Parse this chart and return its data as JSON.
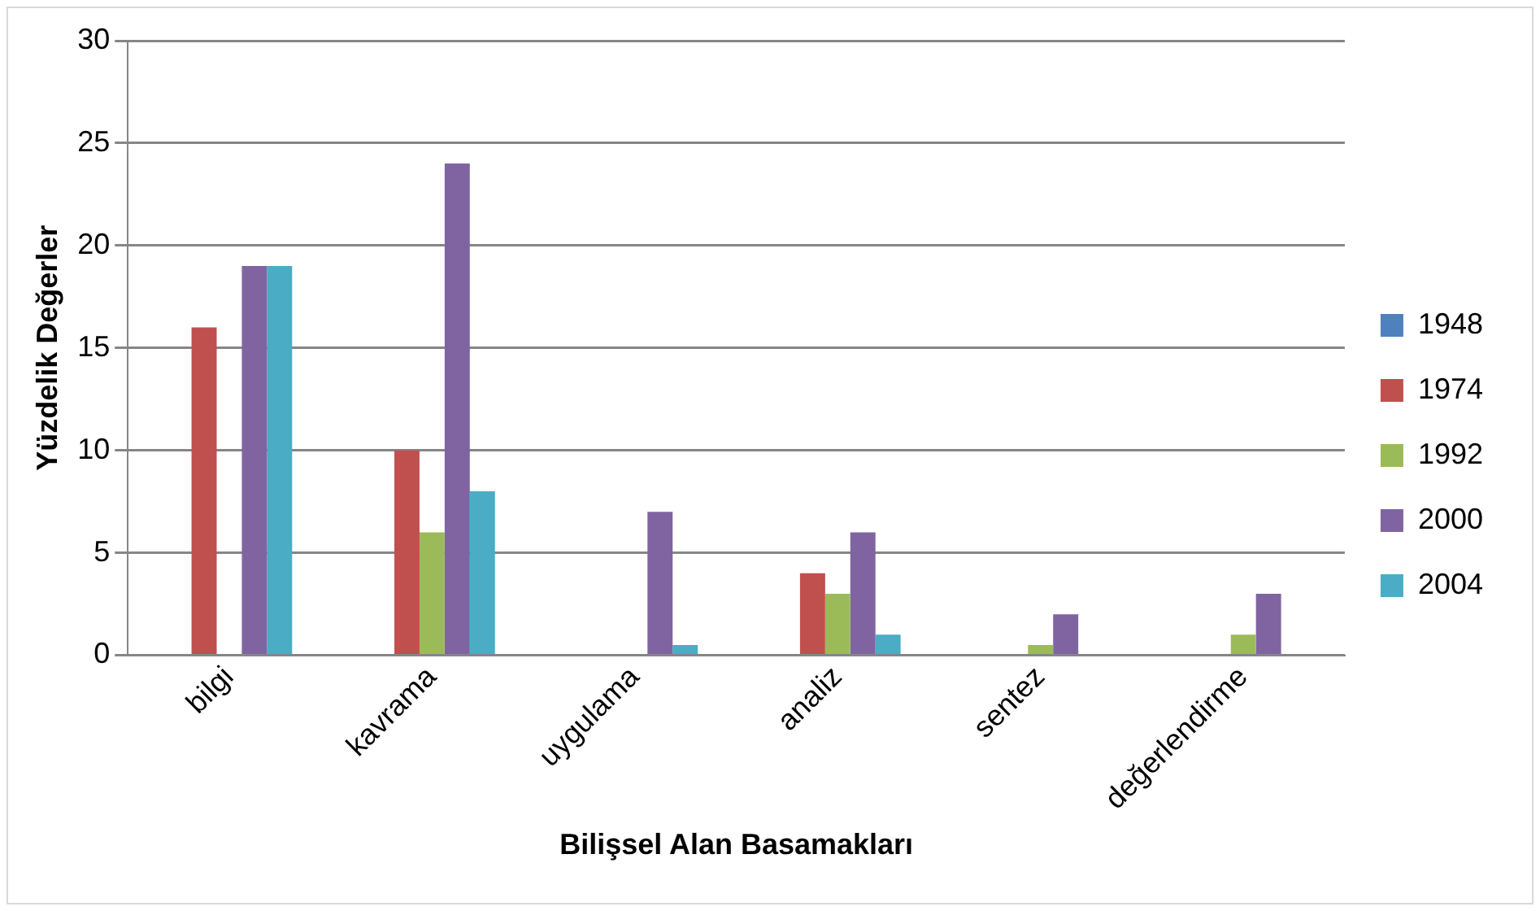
{
  "chart_data": {
    "type": "bar",
    "xlabel": "Bilişsel Alan Basamakları",
    "ylabel": "Yüzdelik Değerler",
    "categories": [
      "bilgi",
      "kavrama",
      "uygulama",
      "analiz",
      "sentez",
      "değerlendirme"
    ],
    "series": [
      {
        "name": "1948",
        "color": "#4f81bd",
        "values": [
          0,
          0,
          0,
          0,
          0,
          0
        ]
      },
      {
        "name": "1974",
        "color": "#c0504d",
        "values": [
          16,
          10,
          0,
          4,
          0,
          0
        ]
      },
      {
        "name": "1992",
        "color": "#9bbb59",
        "values": [
          0,
          6,
          0,
          3,
          0.5,
          1
        ]
      },
      {
        "name": "2000",
        "color": "#8064a2",
        "values": [
          19,
          24,
          7,
          6,
          2,
          3
        ]
      },
      {
        "name": "2004",
        "color": "#4bacc6",
        "values": [
          19,
          8,
          0.5,
          1,
          0,
          0
        ]
      }
    ],
    "ylim": [
      0,
      30
    ],
    "yticks": [
      0,
      5,
      10,
      15,
      20,
      25,
      30
    ],
    "grid": "y",
    "legend": "right"
  }
}
